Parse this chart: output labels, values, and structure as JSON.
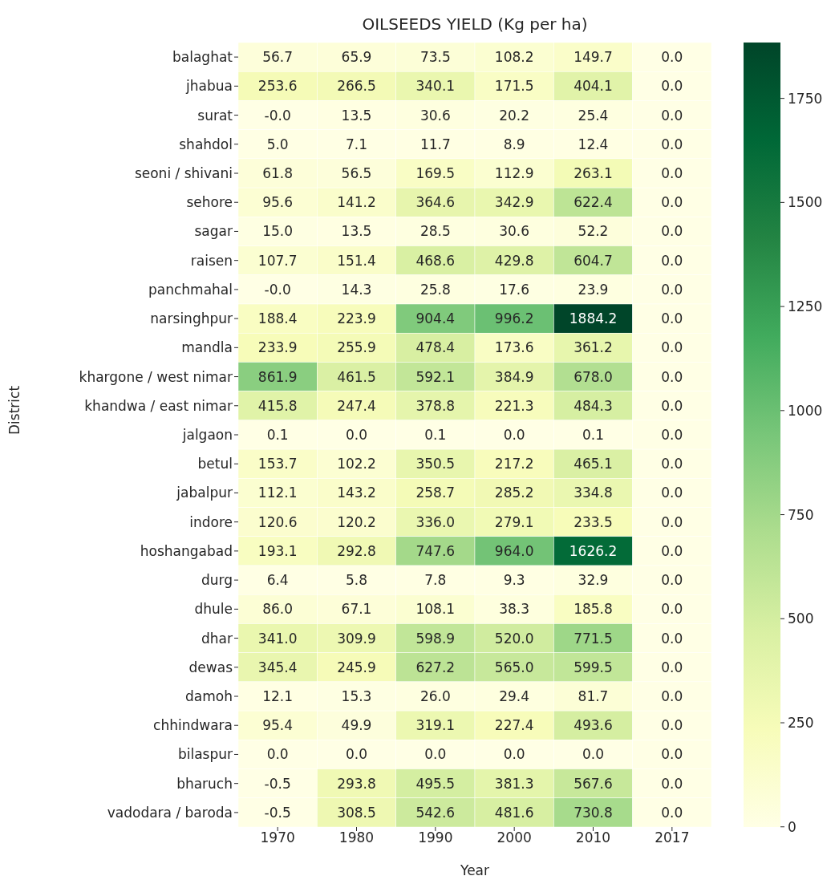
{
  "chart_data": {
    "type": "heatmap",
    "title": "OILSEEDS YIELD (Kg per ha)",
    "xlabel": "Year",
    "ylabel": "District",
    "categories": [
      "1970",
      "1980",
      "1990",
      "2000",
      "2010",
      "2017"
    ],
    "y_categories": [
      "balaghat",
      "jhabua",
      "surat",
      "shahdol",
      "seoni / shivani",
      "sehore",
      "sagar",
      "raisen",
      "panchmahal",
      "narsinghpur",
      "mandla",
      "khargone / west nimar",
      "khandwa / east nimar",
      "jalgaon",
      "betul",
      "jabalpur",
      "indore",
      "hoshangabad",
      "durg",
      "dhule",
      "dhar",
      "dewas",
      "damoh",
      "chhindwara",
      "bilaspur",
      "bharuch",
      "vadodara / baroda"
    ],
    "cells": [
      [
        56.7,
        65.9,
        73.5,
        108.2,
        149.7,
        0
      ],
      [
        253.6,
        266.5,
        340.1,
        171.5,
        404.1,
        0
      ],
      [
        0,
        13.5,
        30.6,
        20.2,
        25.4,
        0
      ],
      [
        5,
        7.1,
        11.7,
        8.9,
        12.4,
        0
      ],
      [
        61.8,
        56.5,
        169.5,
        112.9,
        263.1,
        0
      ],
      [
        95.6,
        141.2,
        364.6,
        342.9,
        622.4,
        0
      ],
      [
        15,
        13.5,
        28.5,
        30.6,
        52.2,
        0
      ],
      [
        107.7,
        151.4,
        468.6,
        429.8,
        604.7,
        0
      ],
      [
        0,
        14.3,
        25.8,
        17.6,
        23.9,
        0
      ],
      [
        188.4,
        223.9,
        904.4,
        996.2,
        1884.2,
        0
      ],
      [
        233.9,
        255.9,
        478.4,
        173.6,
        361.2,
        0
      ],
      [
        861.9,
        461.5,
        592.1,
        384.9,
        678,
        0
      ],
      [
        415.8,
        247.4,
        378.8,
        221.3,
        484.3,
        0
      ],
      [
        0.1,
        0,
        0.1,
        0,
        0.1,
        0
      ],
      [
        153.7,
        102.2,
        350.5,
        217.2,
        465.1,
        0
      ],
      [
        112.1,
        143.2,
        258.7,
        285.2,
        334.8,
        0
      ],
      [
        120.6,
        120.2,
        336,
        279.1,
        233.5,
        0
      ],
      [
        193.1,
        292.8,
        747.6,
        964,
        1626.2,
        0
      ],
      [
        6.4,
        5.8,
        7.8,
        9.3,
        32.9,
        0
      ],
      [
        86,
        67.1,
        108.1,
        38.3,
        185.8,
        0
      ],
      [
        341,
        309.9,
        598.9,
        520,
        771.5,
        0
      ],
      [
        345.4,
        245.9,
        627.2,
        565,
        599.5,
        0
      ],
      [
        12.1,
        15.3,
        26,
        29.4,
        81.7,
        0
      ],
      [
        95.4,
        49.9,
        319.1,
        227.4,
        493.6,
        0
      ],
      [
        0,
        0,
        0,
        0,
        0,
        0
      ],
      [
        -0.5,
        293.8,
        495.5,
        381.3,
        567.6,
        0
      ],
      [
        -0.5,
        308.5,
        542.6,
        481.6,
        730.8,
        0
      ]
    ],
    "cell_labels": [
      [
        "56.7",
        "65.9",
        "73.5",
        "108.2",
        "149.7",
        "0.0"
      ],
      [
        "253.6",
        "266.5",
        "340.1",
        "171.5",
        "404.1",
        "0.0"
      ],
      [
        "-0.0",
        "13.5",
        "30.6",
        "20.2",
        "25.4",
        "0.0"
      ],
      [
        "5.0",
        "7.1",
        "11.7",
        "8.9",
        "12.4",
        "0.0"
      ],
      [
        "61.8",
        "56.5",
        "169.5",
        "112.9",
        "263.1",
        "0.0"
      ],
      [
        "95.6",
        "141.2",
        "364.6",
        "342.9",
        "622.4",
        "0.0"
      ],
      [
        "15.0",
        "13.5",
        "28.5",
        "30.6",
        "52.2",
        "0.0"
      ],
      [
        "107.7",
        "151.4",
        "468.6",
        "429.8",
        "604.7",
        "0.0"
      ],
      [
        "-0.0",
        "14.3",
        "25.8",
        "17.6",
        "23.9",
        "0.0"
      ],
      [
        "188.4",
        "223.9",
        "904.4",
        "996.2",
        "1884.2",
        "0.0"
      ],
      [
        "233.9",
        "255.9",
        "478.4",
        "173.6",
        "361.2",
        "0.0"
      ],
      [
        "861.9",
        "461.5",
        "592.1",
        "384.9",
        "678.0",
        "0.0"
      ],
      [
        "415.8",
        "247.4",
        "378.8",
        "221.3",
        "484.3",
        "0.0"
      ],
      [
        "0.1",
        "0.0",
        "0.1",
        "0.0",
        "0.1",
        "0.0"
      ],
      [
        "153.7",
        "102.2",
        "350.5",
        "217.2",
        "465.1",
        "0.0"
      ],
      [
        "112.1",
        "143.2",
        "258.7",
        "285.2",
        "334.8",
        "0.0"
      ],
      [
        "120.6",
        "120.2",
        "336.0",
        "279.1",
        "233.5",
        "0.0"
      ],
      [
        "193.1",
        "292.8",
        "747.6",
        "964.0",
        "1626.2",
        "0.0"
      ],
      [
        "6.4",
        "5.8",
        "7.8",
        "9.3",
        "32.9",
        "0.0"
      ],
      [
        "86.0",
        "67.1",
        "108.1",
        "38.3",
        "185.8",
        "0.0"
      ],
      [
        "341.0",
        "309.9",
        "598.9",
        "520.0",
        "771.5",
        "0.0"
      ],
      [
        "345.4",
        "245.9",
        "627.2",
        "565.0",
        "599.5",
        "0.0"
      ],
      [
        "12.1",
        "15.3",
        "26.0",
        "29.4",
        "81.7",
        "0.0"
      ],
      [
        "95.4",
        "49.9",
        "319.1",
        "227.4",
        "493.6",
        "0.0"
      ],
      [
        "0.0",
        "0.0",
        "0.0",
        "0.0",
        "0.0",
        "0.0"
      ],
      [
        "-0.5",
        "293.8",
        "495.5",
        "381.3",
        "567.6",
        "0.0"
      ],
      [
        "-0.5",
        "308.5",
        "542.6",
        "481.6",
        "730.8",
        "0.0"
      ]
    ],
    "clim": [
      -0.5,
      1884.2
    ],
    "cticks": [
      0,
      250,
      500,
      750,
      1000,
      1250,
      1500,
      1750
    ]
  }
}
